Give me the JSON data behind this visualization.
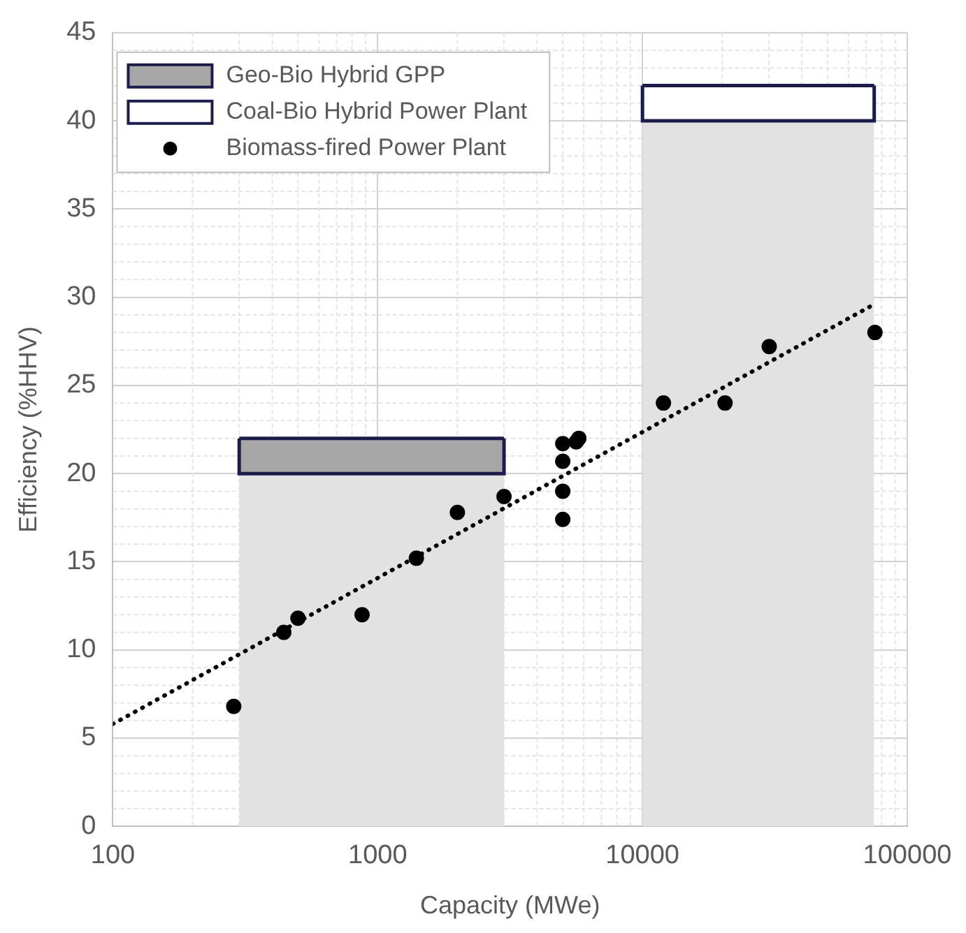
{
  "chart_data": {
    "type": "scatter",
    "xlabel": "Capacity (MWe)",
    "ylabel": "Efficiency (%HHV)",
    "log": "x",
    "xlim": [
      100,
      100000
    ],
    "xticks": [
      100,
      1000,
      10000,
      100000
    ],
    "ylim": [
      0,
      45
    ],
    "yticks": [
      0,
      5,
      10,
      15,
      20,
      25,
      30,
      35,
      40,
      45
    ],
    "grid": true,
    "legend": "top left",
    "stacked": true,
    "x": [
      300,
      3000,
      10000,
      75000
    ],
    "series": [
      {
        "type": "area",
        "color": "#e2e2e2",
        "values": [
          20,
          20,
          null,
          null
        ]
      },
      {
        "name": "Geo-Bio Hybrid GPP",
        "type": "area",
        "color": "#a6a6a6",
        "values": [
          2,
          2,
          null,
          null
        ]
      },
      {
        "type": "area",
        "color": "#e2e2e2",
        "values": [
          null,
          null,
          40,
          40
        ]
      },
      {
        "name": "Coal-Bio Hybrid Power Plant",
        "type": "area",
        "color": "#ffffff",
        "values": [
          null,
          null,
          2,
          2
        ]
      },
      {
        "name": "Biomass-fired Power Plant",
        "color": "#000000",
        "marker": "circle",
        "x": [
          286,
          442,
          500,
          873,
          1400,
          2000,
          3000,
          5000,
          5620,
          5750,
          5000,
          5000,
          5000,
          12000,
          20500,
          30100,
          75500
        ],
        "values": [
          6.8,
          11.0,
          11.8,
          12.0,
          15.2,
          17.8,
          18.7,
          21.7,
          21.8,
          22.0,
          20.7,
          19.0,
          17.4,
          24.0,
          24.0,
          27.2,
          28.0
        ]
      },
      {
        "type": "line",
        "color": "#000000",
        "line_style": "dotted",
        "marker": "none",
        "x": [
          100,
          75000
        ],
        "values": [
          5.8,
          29.6
        ]
      }
    ]
  }
}
